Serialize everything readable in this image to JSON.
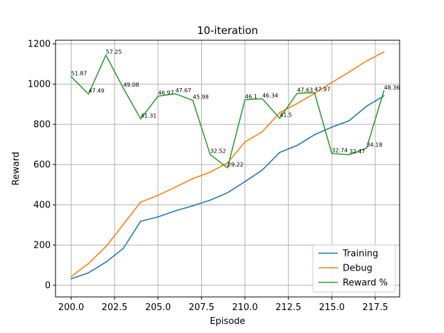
{
  "chart_data": {
    "type": "line",
    "title": "10-iteration",
    "xlabel": "Episode",
    "ylabel": "Reward",
    "xlim": [
      199.1,
      218.9
    ],
    "ylim": [
      -58,
      1218
    ],
    "xticks": [
      200.0,
      202.5,
      205.0,
      207.5,
      210.0,
      212.5,
      215.0,
      217.5
    ],
    "xtick_labels": [
      "200.0",
      "202.5",
      "205.0",
      "207.5",
      "210.0",
      "212.5",
      "215.0",
      "217.5"
    ],
    "yticks": [
      0,
      200,
      400,
      600,
      800,
      1000,
      1200
    ],
    "ytick_labels": [
      "0",
      "200",
      "400",
      "600",
      "800",
      "1000",
      "1200"
    ],
    "grid": true,
    "legend_position": "lower-right",
    "x": [
      200,
      201,
      202,
      203,
      204,
      205,
      206,
      207,
      208,
      209,
      210,
      211,
      212,
      213,
      214,
      215,
      216,
      217,
      218
    ],
    "series": [
      {
        "name": "Training",
        "color": "#1f77b4",
        "values": [
          32,
          62,
          115,
          183,
          318,
          340,
          370,
          395,
          423,
          460,
          515,
          573,
          660,
          695,
          748,
          786,
          818,
          890,
          942
        ]
      },
      {
        "name": "Debug",
        "color": "#ff7f0e",
        "values": [
          43,
          108,
          192,
          302,
          413,
          447,
          488,
          530,
          562,
          608,
          712,
          763,
          858,
          903,
          953,
          1008,
          1060,
          1115,
          1160
        ]
      },
      {
        "name": "Reward %",
        "color": "#2ca02c",
        "values": [
          1037,
          950,
          1144,
          980,
          827,
          940,
          952,
          919,
          650,
          584,
          922,
          927,
          830,
          954,
          958,
          655,
          649,
          682,
          967
        ],
        "labels": [
          "51.87",
          "47.49",
          "57.25",
          "49.08",
          "41.31",
          "46.97",
          "47.67",
          "45.98",
          "32.52",
          "29.22",
          "46.1",
          "46.34",
          "41.5",
          "47.63",
          "47.97",
          "32.74",
          "32.47",
          "34.18",
          "48.36"
        ]
      }
    ]
  }
}
